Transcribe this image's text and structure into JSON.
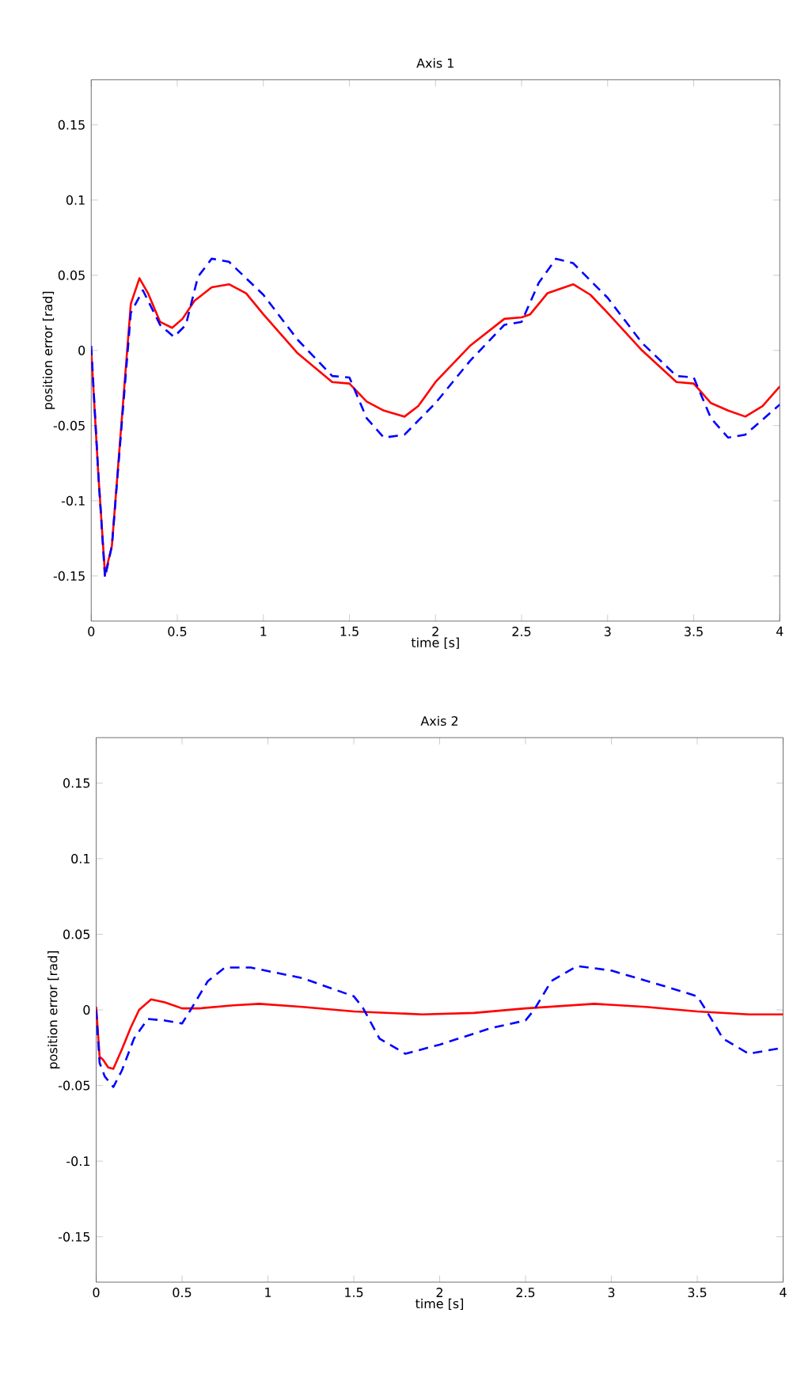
{
  "chart_data": [
    {
      "type": "line",
      "title": "Axis 1",
      "xlabel": "time [s]",
      "ylabel": "position error [rad]",
      "xlim": [
        0,
        4
      ],
      "ylim": [
        -0.18,
        0.18
      ],
      "xticks": [
        0,
        0.5,
        1,
        1.5,
        2,
        2.5,
        3,
        3.5,
        4
      ],
      "yticks": [
        -0.15,
        -0.1,
        -0.05,
        0,
        0.05,
        0.1,
        0.15
      ],
      "grid": false,
      "marker": "none",
      "series": [
        {
          "color": "#ff0000",
          "line_style": "solid",
          "x": [
            0,
            0.04,
            0.08,
            0.12,
            0.18,
            0.23,
            0.28,
            0.33,
            0.4,
            0.47,
            0.53,
            0.6,
            0.7,
            0.8,
            0.9,
            1.0,
            1.2,
            1.4,
            1.5,
            1.6,
            1.7,
            1.82,
            1.9,
            2.0,
            2.2,
            2.4,
            2.5,
            2.55,
            2.65,
            2.8,
            2.9,
            3.0,
            3.2,
            3.4,
            3.5,
            3.6,
            3.7,
            3.8,
            3.9,
            4.0
          ],
          "values": [
            0,
            -0.08,
            -0.149,
            -0.13,
            -0.042,
            0.031,
            0.048,
            0.038,
            0.019,
            0.015,
            0.021,
            0.033,
            0.042,
            0.044,
            0.038,
            0.024,
            -0.002,
            -0.021,
            -0.022,
            -0.034,
            -0.04,
            -0.044,
            -0.037,
            -0.021,
            0.003,
            0.021,
            0.022,
            0.024,
            0.038,
            0.044,
            0.037,
            0.025,
            0,
            -0.021,
            -0.022,
            -0.035,
            -0.04,
            -0.044,
            -0.037,
            -0.024
          ]
        },
        {
          "color": "#0000ff",
          "line_style": "dashed",
          "x": [
            0,
            0.04,
            0.08,
            0.12,
            0.18,
            0.23,
            0.3,
            0.4,
            0.48,
            0.55,
            0.62,
            0.7,
            0.8,
            1.0,
            1.2,
            1.4,
            1.5,
            1.6,
            1.7,
            1.82,
            2.0,
            2.2,
            2.4,
            2.5,
            2.6,
            2.7,
            2.8,
            3.0,
            3.2,
            3.4,
            3.5,
            3.6,
            3.7,
            3.8,
            4.0
          ],
          "values": [
            0.003,
            -0.08,
            -0.151,
            -0.13,
            -0.045,
            0.025,
            0.04,
            0.017,
            0.009,
            0.017,
            0.049,
            0.061,
            0.059,
            0.037,
            0.007,
            -0.017,
            -0.018,
            -0.045,
            -0.058,
            -0.056,
            -0.035,
            -0.007,
            0.017,
            0.019,
            0.045,
            0.061,
            0.058,
            0.035,
            0.005,
            -0.017,
            -0.018,
            -0.045,
            -0.058,
            -0.056,
            -0.036
          ]
        }
      ]
    },
    {
      "type": "line",
      "title": "Axis 2",
      "xlabel": "time [s]",
      "ylabel": "position error [rad]",
      "xlim": [
        0,
        4
      ],
      "ylim": [
        -0.18,
        0.18
      ],
      "xticks": [
        0,
        0.5,
        1,
        1.5,
        2,
        2.5,
        3,
        3.5,
        4
      ],
      "yticks": [
        -0.15,
        -0.1,
        -0.05,
        0,
        0.05,
        0.1,
        0.15
      ],
      "grid": false,
      "marker": "none",
      "series": [
        {
          "color": "#ff0000",
          "line_style": "solid",
          "x": [
            0,
            0.02,
            0.04,
            0.07,
            0.1,
            0.15,
            0.2,
            0.25,
            0.32,
            0.4,
            0.5,
            0.6,
            0.8,
            0.95,
            1.2,
            1.5,
            1.9,
            2.2,
            2.5,
            2.9,
            3.2,
            3.5,
            3.8,
            4.0
          ],
          "values": [
            0.002,
            -0.031,
            -0.033,
            -0.038,
            -0.039,
            -0.026,
            -0.012,
            0,
            0.007,
            0.005,
            0.001,
            0.001,
            0.003,
            0.004,
            0.002,
            -0.001,
            -0.003,
            -0.002,
            0.001,
            0.004,
            0.002,
            -0.001,
            -0.003,
            -0.003
          ]
        },
        {
          "color": "#0000ff",
          "line_style": "dashed",
          "x": [
            0,
            0.02,
            0.05,
            0.1,
            0.15,
            0.22,
            0.3,
            0.4,
            0.5,
            0.55,
            0.65,
            0.75,
            0.9,
            1.2,
            1.5,
            1.55,
            1.65,
            1.8,
            2.0,
            2.3,
            2.5,
            2.55,
            2.65,
            2.8,
            3.0,
            3.3,
            3.5,
            3.55,
            3.65,
            3.8,
            4.0
          ],
          "values": [
            0,
            -0.035,
            -0.044,
            -0.051,
            -0.04,
            -0.019,
            -0.006,
            -0.007,
            -0.009,
            0,
            0.019,
            0.028,
            0.028,
            0.021,
            0.009,
            0.002,
            -0.019,
            -0.029,
            -0.023,
            -0.012,
            -0.007,
            0,
            0.019,
            0.029,
            0.026,
            0.016,
            0.009,
            0,
            -0.019,
            -0.029,
            -0.025
          ]
        }
      ]
    }
  ]
}
